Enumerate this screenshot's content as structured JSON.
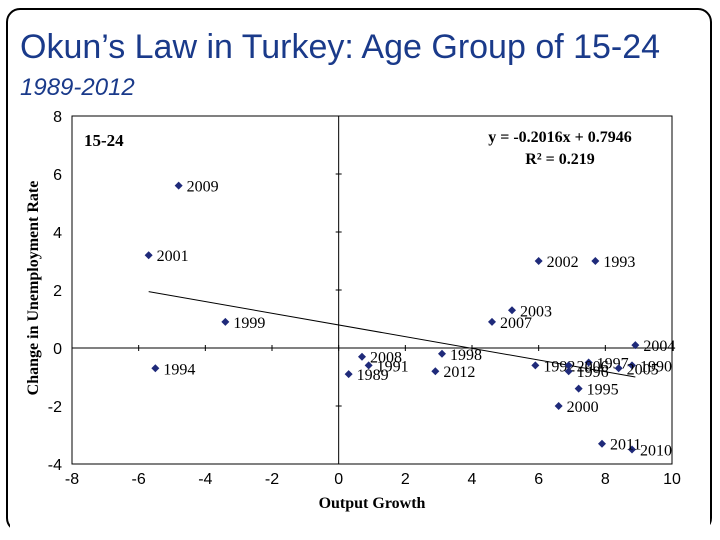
{
  "slide": {
    "title": "Okun’s Law in Turkey: Age Group of 15-24",
    "subtitle": "1989-2012"
  },
  "chart_data": {
    "type": "scatter",
    "panel_label": "15-24",
    "xlabel": "Output Growth",
    "ylabel": "Change in Unemployment Rate",
    "xlim": [
      -8,
      10
    ],
    "ylim": [
      -4,
      8
    ],
    "xticks": [
      "-8",
      "-6",
      "-4",
      "-2",
      "0",
      "2",
      "4",
      "6",
      "8",
      "10"
    ],
    "yticks": [
      "-4",
      "-2",
      "0",
      "2",
      "4",
      "6",
      "8"
    ],
    "trendline": {
      "equation": "y = -0.2016x + 0.7946",
      "r2": "R² = 0.219",
      "slope": -0.2016,
      "intercept": 0.7946
    },
    "points": [
      {
        "year": "1989",
        "x": 0.3,
        "y": -0.9
      },
      {
        "year": "1990",
        "x": 8.8,
        "y": -0.6
      },
      {
        "year": "1991",
        "x": 0.9,
        "y": -0.6
      },
      {
        "year": "1992",
        "x": 5.9,
        "y": -0.6
      },
      {
        "year": "1993",
        "x": 7.7,
        "y": 3.0
      },
      {
        "year": "1994",
        "x": -5.5,
        "y": -0.7
      },
      {
        "year": "1995",
        "x": 7.2,
        "y": -1.4
      },
      {
        "year": "1996",
        "x": 6.9,
        "y": -0.8
      },
      {
        "year": "1997",
        "x": 7.5,
        "y": -0.5
      },
      {
        "year": "1998",
        "x": 3.1,
        "y": -0.2
      },
      {
        "year": "1999",
        "x": -3.4,
        "y": 0.9
      },
      {
        "year": "2000",
        "x": 6.6,
        "y": -2.0
      },
      {
        "year": "2001",
        "x": -5.7,
        "y": 3.2
      },
      {
        "year": "2002",
        "x": 6.0,
        "y": 3.0
      },
      {
        "year": "2003",
        "x": 5.2,
        "y": 1.3
      },
      {
        "year": "2004",
        "x": 8.9,
        "y": 0.1
      },
      {
        "year": "2005",
        "x": 8.4,
        "y": -0.7
      },
      {
        "year": "2006",
        "x": 6.9,
        "y": -0.6
      },
      {
        "year": "2007",
        "x": 4.6,
        "y": 0.9
      },
      {
        "year": "2008",
        "x": 0.7,
        "y": -0.3
      },
      {
        "year": "2009",
        "x": -4.8,
        "y": 5.6
      },
      {
        "year": "2010",
        "x": 8.8,
        "y": -3.5
      },
      {
        "year": "2011",
        "x": 7.9,
        "y": -3.3
      },
      {
        "year": "2012",
        "x": 2.9,
        "y": -0.8
      }
    ],
    "grid": false,
    "marker_color": "#1f2a7a",
    "line_color": "#000000"
  }
}
